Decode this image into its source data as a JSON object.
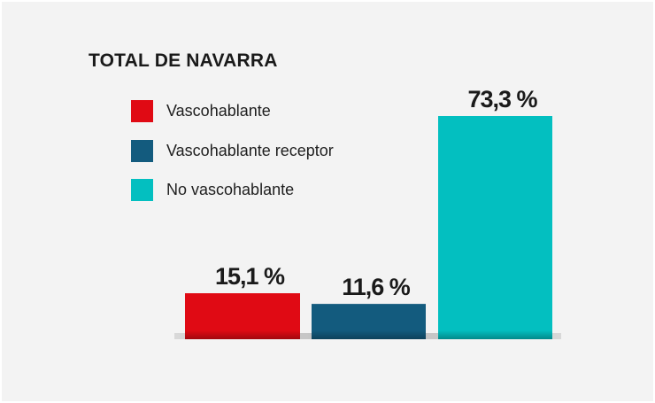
{
  "chart_data": {
    "type": "bar",
    "title": "TOTAL DE NAVARRA",
    "categories": [
      "Vascohablante",
      "Vascohablante receptor",
      "No vascohablante"
    ],
    "values": [
      15.1,
      11.6,
      73.3
    ],
    "value_labels": [
      "15,1 %",
      "11,6 %",
      "73,3 %"
    ],
    "colors": [
      "#e00a14",
      "#135b7e",
      "#03bfc0"
    ],
    "legend": [
      {
        "label": "Vascohablante",
        "color": "#e00a14"
      },
      {
        "label": "Vascohablante receptor",
        "color": "#135b7e"
      },
      {
        "label": "No vascohablante",
        "color": "#03bfc0"
      }
    ],
    "legend_placement": "top-left",
    "grid": false,
    "ylim": [
      0,
      73.3
    ]
  }
}
